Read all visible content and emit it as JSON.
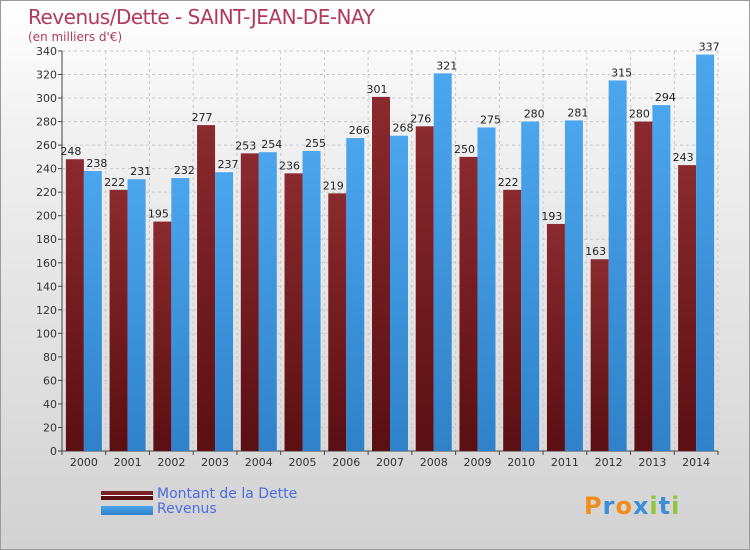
{
  "title": "Revenus/Dette - SAINT-JEAN-DE-NAY",
  "subtitle": "(en milliers d'€)",
  "logo": {
    "letters": [
      "P",
      "r",
      "o",
      "x",
      "i",
      "t",
      "i"
    ],
    "colors": [
      "#f08c1a",
      "#3b8fd9",
      "#f08c1a",
      "#3b8fd9",
      "#8cc63f",
      "#3b8fd9",
      "#8cc63f"
    ]
  },
  "colors": {
    "dette": "#7a2326",
    "revenus": "#3c95dd",
    "title": "#b03a5b",
    "legend_text": "#4d6ce0"
  },
  "chart_data": {
    "type": "bar",
    "title": "Revenus/Dette - SAINT-JEAN-DE-NAY",
    "ylabel": "(en milliers d'€)",
    "categories": [
      "2000",
      "2001",
      "2002",
      "2003",
      "2004",
      "2005",
      "2006",
      "2007",
      "2008",
      "2009",
      "2010",
      "2011",
      "2012",
      "2013",
      "2014"
    ],
    "series": [
      {
        "name": "Montant de la Dette",
        "values": [
          248,
          222,
          195,
          277,
          253,
          236,
          219,
          301,
          276,
          250,
          222,
          193,
          163,
          280,
          243
        ]
      },
      {
        "name": "Revenus",
        "values": [
          238,
          231,
          232,
          237,
          254,
          255,
          266,
          268,
          321,
          275,
          280,
          281,
          315,
          294,
          337
        ]
      }
    ],
    "ylim": [
      0,
      340
    ],
    "yticks": [
      0,
      20,
      40,
      60,
      80,
      100,
      120,
      140,
      160,
      180,
      200,
      220,
      240,
      260,
      280,
      300,
      320,
      340
    ],
    "grid": true,
    "legend_position": "bottom-left"
  }
}
